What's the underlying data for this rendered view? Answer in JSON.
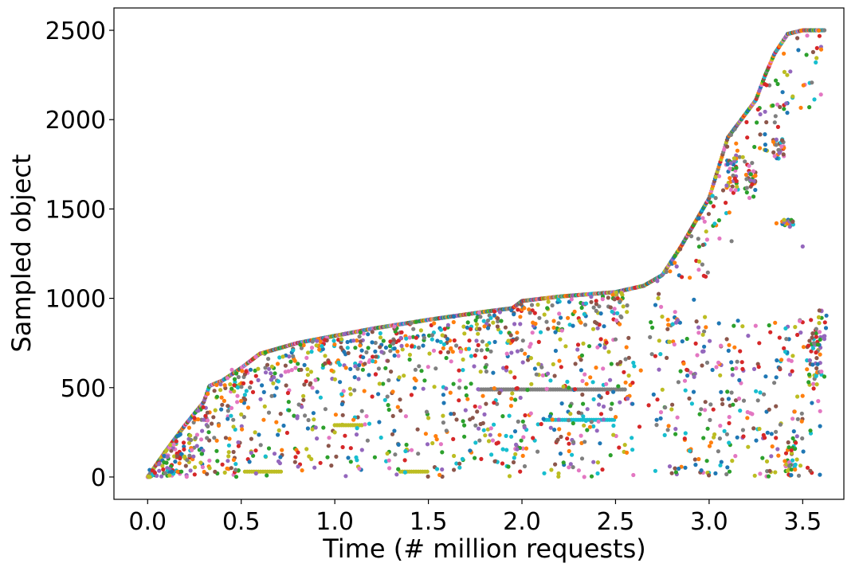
{
  "chart_data": {
    "type": "scatter",
    "title": "",
    "xlabel": "Time (# million requests)",
    "ylabel": "Sampled object",
    "xlim": [
      -0.18,
      3.72
    ],
    "ylim": [
      -125,
      2625
    ],
    "x_ticks": [
      0.0,
      0.5,
      1.0,
      1.5,
      2.0,
      2.5,
      3.0,
      3.5
    ],
    "x_tick_labels": [
      "0.0",
      "0.5",
      "1.0",
      "1.5",
      "2.0",
      "2.5",
      "3.0",
      "3.5"
    ],
    "y_ticks": [
      0,
      500,
      1000,
      1500,
      2000,
      2500
    ],
    "y_tick_labels": [
      "0",
      "500",
      "1000",
      "1500",
      "2000",
      "2500"
    ],
    "grid": false,
    "legend": "none",
    "colors": [
      "#1f77b4",
      "#ff7f0e",
      "#2ca02c",
      "#d62728",
      "#9467bd",
      "#8c564b",
      "#e377c2",
      "#7f7f7f",
      "#bcbd22",
      "#17becf"
    ],
    "first_access_curve": {
      "description_points": [
        [
          0.0,
          0
        ],
        [
          0.1,
          150
        ],
        [
          0.2,
          290
        ],
        [
          0.3,
          420
        ],
        [
          0.33,
          510
        ],
        [
          0.4,
          540
        ],
        [
          0.5,
          610
        ],
        [
          0.6,
          690
        ],
        [
          0.8,
          750
        ],
        [
          1.0,
          790
        ],
        [
          1.2,
          830
        ],
        [
          1.5,
          880
        ],
        [
          1.8,
          925
        ],
        [
          1.95,
          945
        ],
        [
          2.0,
          985
        ],
        [
          2.2,
          1010
        ],
        [
          2.5,
          1035
        ],
        [
          2.65,
          1070
        ],
        [
          2.75,
          1130
        ],
        [
          2.85,
          1290
        ],
        [
          3.0,
          1560
        ],
        [
          3.1,
          1900
        ],
        [
          3.2,
          2040
        ],
        [
          3.25,
          2110
        ],
        [
          3.3,
          2250
        ],
        [
          3.35,
          2370
        ],
        [
          3.42,
          2480
        ],
        [
          3.5,
          2500
        ],
        [
          3.62,
          2500
        ]
      ]
    },
    "series": [
      {
        "x": [
          0.13,
          0.16,
          0.18,
          0.25,
          0.3,
          0.32,
          0.45,
          0.47,
          0.5,
          0.52,
          0.55,
          0.62,
          0.68,
          0.75,
          0.8,
          0.82,
          0.88,
          0.95,
          1.0,
          1.02,
          1.05,
          1.1,
          1.15,
          1.2,
          1.25,
          1.3,
          1.38,
          1.45,
          1.5,
          1.52,
          1.58,
          1.62,
          1.7,
          1.75,
          1.8,
          1.88,
          1.92,
          1.98,
          2.05,
          2.1,
          2.15,
          2.2,
          2.25,
          2.3,
          2.35,
          2.4,
          2.45,
          2.5,
          2.55,
          2.6,
          2.72,
          2.78,
          2.82,
          2.88,
          2.92,
          2.98,
          3.05,
          3.12,
          3.18,
          3.25,
          3.3,
          3.36,
          3.4,
          3.44,
          3.5,
          3.55,
          3.6
        ],
        "y": [
          30,
          30,
          30,
          330,
          320,
          360,
          600,
          40,
          350,
          460,
          600,
          320,
          580,
          470,
          340,
          600,
          500,
          380,
          250,
          640,
          700,
          320,
          600,
          450,
          700,
          590,
          340,
          620,
          330,
          770,
          460,
          720,
          500,
          680,
          350,
          470,
          690,
          310,
          520,
          810,
          340,
          650,
          500,
          740,
          380,
          860,
          520,
          770,
          180,
          620,
          320,
          880,
          240,
          600,
          560,
          420,
          640,
          1320,
          1790,
          480,
          1860,
          1420,
          2060,
          150,
          1290,
          780,
          590
        ]
      }
    ],
    "scatter_clusters": [
      {
        "name": "",
        "x_range": [
          0.52,
          0.72
        ],
        "y": 30
      },
      {
        "name": "",
        "x_range": [
          1.0,
          1.15
        ],
        "y": 290
      },
      {
        "name": "",
        "x_range": [
          1.35,
          1.5
        ],
        "y": 30
      },
      {
        "name": "",
        "x_range": [
          1.77,
          2.56
        ],
        "y": 490
      },
      {
        "name": "",
        "x_range": [
          2.12,
          2.5
        ],
        "y": 320
      }
    ]
  }
}
